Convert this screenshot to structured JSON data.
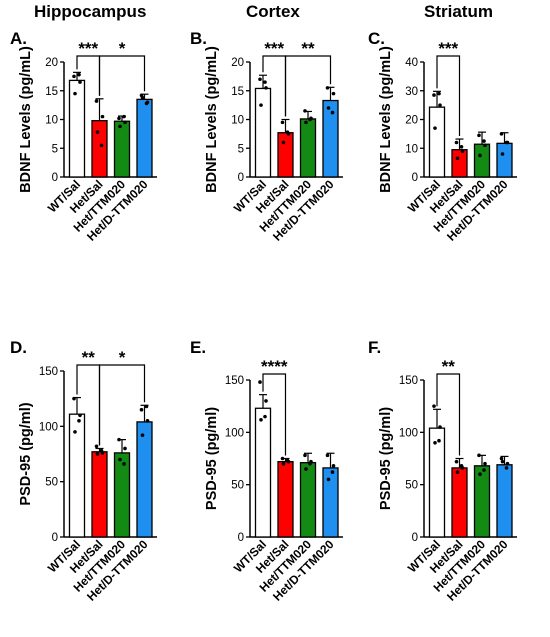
{
  "header": {
    "col1": "Hippocampus",
    "col2": "Cortex",
    "col3": "Striatum"
  },
  "colors": {
    "WT/Sal": "#ffffff",
    "Het/Sal": "#ff0000",
    "Het/TTM020": "#138a13",
    "Het/D-TTM020": "#1f8ff0"
  },
  "chart_data": [
    {
      "type": "bar",
      "panel": "A.",
      "ylabel": "BDNF Levels (pg/mL)",
      "ylim": [
        0,
        20
      ],
      "yticks": [
        0,
        5,
        10,
        15,
        20
      ],
      "categories": [
        "WT/Sal",
        "Het/Sal",
        "Het/TTM020",
        "Het/D-TTM020"
      ],
      "values": [
        16.8,
        9.8,
        9.7,
        13.5
      ],
      "errors": [
        1.4,
        3.8,
        0.9,
        0.9
      ],
      "points": [
        [
          17.5,
          16.5,
          14.5,
          17.8
        ],
        [
          13.2,
          10.5,
          7.8,
          5.5
        ],
        [
          10.2,
          9.5,
          8.8,
          10.5
        ],
        [
          14.2,
          13.0,
          13.8,
          12.8
        ]
      ],
      "significance": [
        {
          "from": 0,
          "to": 1,
          "label": "***"
        },
        {
          "from": 1,
          "to": 3,
          "label": "*"
        }
      ]
    },
    {
      "type": "bar",
      "panel": "B.",
      "ylabel": "BDNF Levels (pg/mL)",
      "ylim": [
        0,
        20
      ],
      "yticks": [
        0,
        5,
        10,
        15,
        20
      ],
      "categories": [
        "WT/Sal",
        "Het/Sal",
        "Het/TTM020",
        "Het/D-TTM020"
      ],
      "values": [
        15.4,
        7.7,
        10.1,
        13.3
      ],
      "errors": [
        2.3,
        2.3,
        1.3,
        2.3
      ],
      "points": [
        [
          17.0,
          15.5,
          12.5,
          16.5
        ],
        [
          9.5,
          7.5,
          6.0,
          7.8
        ],
        [
          11.5,
          10.2,
          9.5,
          10.0
        ],
        [
          15.5,
          14.5,
          12.0,
          11.2
        ]
      ],
      "significance": [
        {
          "from": 0,
          "to": 1,
          "label": "***"
        },
        {
          "from": 1,
          "to": 3,
          "label": "**"
        }
      ]
    },
    {
      "type": "bar",
      "panel": "C.",
      "ylabel": "BDNF Levels (pg/mL)",
      "ylim": [
        0,
        40
      ],
      "yticks": [
        0,
        10,
        20,
        30,
        40
      ],
      "categories": [
        "WT/Sal",
        "Het/Sal",
        "Het/TTM020",
        "Het/D-TTM020"
      ],
      "values": [
        24.3,
        9.5,
        11.4,
        11.7
      ],
      "errors": [
        5.5,
        3.7,
        4.2,
        3.7
      ],
      "points": [
        [
          28.5,
          25.0,
          17.0,
          29.0
        ],
        [
          12.0,
          9.0,
          6.5,
          10.5
        ],
        [
          14.5,
          11.0,
          7.5,
          12.5
        ],
        [
          15.0,
          12.0,
          8.0,
          12.0
        ]
      ],
      "significance": [
        {
          "from": 0,
          "to": 1,
          "label": "***"
        }
      ]
    },
    {
      "type": "bar",
      "panel": "D.",
      "ylabel": "PSD-95 (pg/ml)",
      "ylim": [
        0,
        150
      ],
      "yticks": [
        0,
        50,
        100,
        150
      ],
      "categories": [
        "WT/Sal",
        "Het/Sal",
        "Het/TTM020",
        "Het/D-TTM020"
      ],
      "values": [
        111,
        77,
        76,
        104
      ],
      "errors": [
        15,
        3,
        12,
        15
      ],
      "points": [
        [
          125,
          110,
          95,
          105
        ],
        [
          82,
          76,
          75,
          78
        ],
        [
          88,
          80,
          70,
          66
        ],
        [
          115,
          105,
          92,
          118
        ]
      ],
      "significance": [
        {
          "from": 0,
          "to": 1,
          "label": "**"
        },
        {
          "from": 1,
          "to": 3,
          "label": "*"
        }
      ]
    },
    {
      "type": "bar",
      "panel": "E.",
      "ylabel": "PSD-95 (pg/ml)",
      "ylim": [
        0,
        150
      ],
      "yticks": [
        0,
        50,
        100,
        150
      ],
      "categories": [
        "WT/Sal",
        "Het/Sal",
        "Het/TTM020",
        "Het/D-TTM020"
      ],
      "values": [
        123,
        72,
        71,
        66
      ],
      "errors": [
        13,
        3,
        9,
        14
      ],
      "points": [
        [
          148,
          130,
          112,
          115
        ],
        [
          75,
          72,
          70,
          73
        ],
        [
          78,
          72,
          65,
          70
        ],
        [
          78,
          68,
          55,
          62
        ]
      ],
      "significance": [
        {
          "from": 0,
          "to": 1,
          "label": "****"
        }
      ]
    },
    {
      "type": "bar",
      "panel": "F.",
      "ylabel": "PSD-95 (pg/ml)",
      "ylim": [
        0,
        150
      ],
      "yticks": [
        0,
        50,
        100,
        150
      ],
      "categories": [
        "WT/Sal",
        "Het/Sal",
        "Het/TTM020",
        "Het/D-TTM020"
      ],
      "values": [
        104,
        66,
        68,
        69
      ],
      "errors": [
        18,
        9,
        10,
        8
      ],
      "points": [
        [
          125,
          105,
          90,
          92
        ],
        [
          72,
          66,
          62,
          68
        ],
        [
          78,
          70,
          60,
          64
        ],
        [
          75,
          70,
          72,
          66
        ]
      ],
      "significance": [
        {
          "from": 0,
          "to": 1,
          "label": "**"
        }
      ]
    }
  ]
}
